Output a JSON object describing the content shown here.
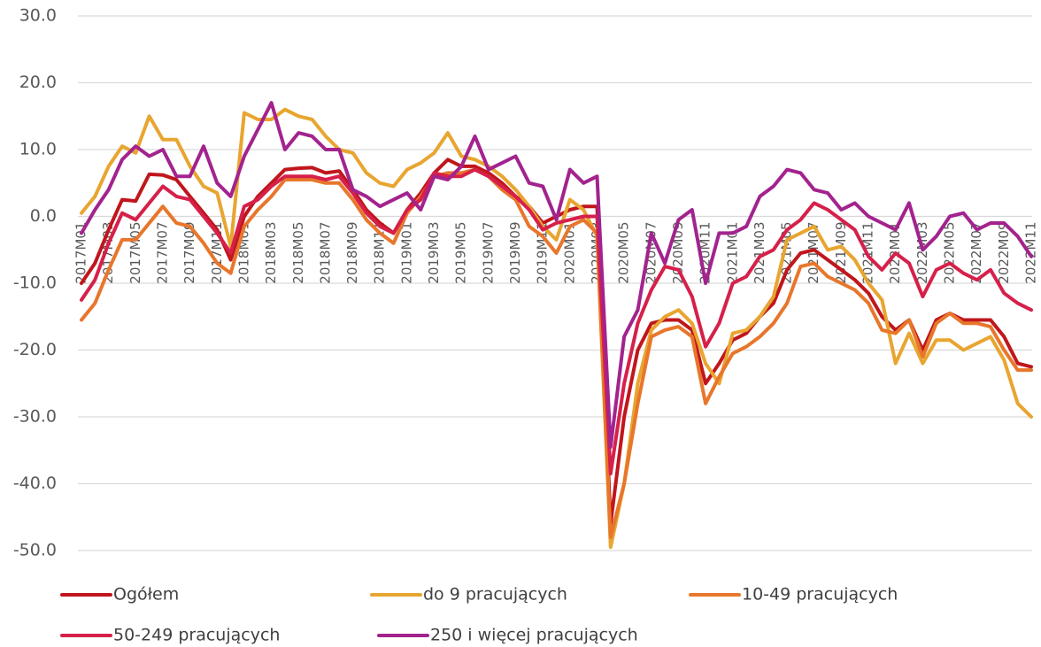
{
  "chart_data": {
    "type": "line",
    "categories": [
      "2017M01",
      null,
      "2017M03",
      null,
      "2017M05",
      null,
      "2017M07",
      null,
      "2017M09",
      null,
      "2017M11",
      null,
      "2018M01",
      null,
      "2018M03",
      null,
      "2018M05",
      null,
      "2018M07",
      null,
      "2018M09",
      null,
      "2018M11",
      null,
      "2019M01",
      null,
      "2019M03",
      null,
      "2019M05",
      null,
      "2019M07",
      null,
      "2019M09",
      null,
      "2019M11",
      null,
      "2020M01",
      null,
      "2020M03",
      null,
      "2020M05",
      null,
      "2020M07",
      null,
      "2020M09",
      null,
      "2020M11",
      null,
      "2021M01",
      null,
      "2021M03",
      null,
      "2021M05",
      null,
      "2021M07",
      null,
      "2021M09",
      null,
      "2021M11",
      null,
      "2022M01",
      null,
      "2022M03",
      null,
      "2022M05",
      null,
      "2022M07",
      null,
      "2022M09",
      null,
      "2022M11"
    ],
    "series": [
      {
        "name": "Ogółem",
        "color": "#c0161c",
        "values": [
          -10,
          -7,
          -2,
          2.5,
          2.3,
          6.3,
          6.2,
          5.5,
          3,
          0.5,
          -2,
          -6.5,
          0,
          3,
          5,
          7,
          7.2,
          7.3,
          6.5,
          6.8,
          4,
          1,
          -1,
          -2.5,
          1,
          3.5,
          6.5,
          8.5,
          7.5,
          7.5,
          6.5,
          5,
          3,
          1.5,
          -1,
          0,
          1,
          1.5,
          1.5,
          -46,
          -30,
          -20,
          -16,
          -15.5,
          -15.5,
          -17,
          -25,
          -22,
          -18.5,
          -17.5,
          -15,
          -13,
          -8,
          -5.5,
          -5,
          -6.5,
          -8,
          -9.5,
          -11.5,
          -15,
          -17,
          -15.5,
          -20,
          -15.5,
          -14.5,
          -15.5,
          -15.5,
          -15.5,
          -18,
          -22,
          -22.5
        ]
      },
      {
        "name": "do 9 pracujących",
        "color": "#e8a530",
        "values": [
          0.5,
          3,
          7.5,
          10.5,
          9.5,
          15,
          11.5,
          11.5,
          7.5,
          4.5,
          3.5,
          -4.5,
          15.5,
          14.5,
          14.5,
          16,
          15,
          14.5,
          12,
          10,
          9.5,
          6.5,
          5,
          4.5,
          7,
          8,
          9.5,
          12.5,
          9,
          8.5,
          7.5,
          6,
          4,
          1.5,
          -1.5,
          -3.5,
          2.5,
          1,
          -3,
          -49.5,
          -40,
          -25,
          -17,
          -15,
          -14,
          -16,
          -22,
          -25,
          -17.5,
          -17,
          -15,
          -12,
          -3.5,
          -2.5,
          -1.5,
          -5,
          -4.5,
          -6.5,
          -10,
          -12.5,
          -22,
          -17.5,
          -22,
          -18.5,
          -18.5,
          -20,
          -19,
          -18,
          -21.5,
          -28,
          -30
        ]
      },
      {
        "name": "10-49 pracujących",
        "color": "#e8762b",
        "values": [
          -15.5,
          -13,
          -8,
          -3.5,
          -3.5,
          -1,
          1.5,
          -1,
          -1.5,
          -4,
          -7,
          -8.5,
          -1.5,
          1,
          3,
          5.5,
          5.5,
          5.5,
          5,
          5,
          2.5,
          -0.5,
          -2.5,
          -4,
          0.5,
          3,
          6,
          6.5,
          6.5,
          7,
          6,
          4,
          2.5,
          -1.5,
          -3,
          -5.5,
          -1.5,
          -0.5,
          -2.5,
          -48,
          -40,
          -28,
          -18,
          -17,
          -16.5,
          -18,
          -28,
          -24,
          -20.5,
          -19.5,
          -18,
          -16,
          -13,
          -7.5,
          -7,
          -9,
          -10,
          -11,
          -13,
          -17,
          -17.5,
          -15.5,
          -21,
          -16,
          -14.5,
          -16,
          -16,
          -16.5,
          -20,
          -23,
          -23
        ]
      },
      {
        "name": "50-249 pracujących",
        "color": "#d6204a",
        "values": [
          -12.5,
          -9.5,
          -4,
          0.5,
          -0.5,
          2,
          4.5,
          3,
          2.5,
          0,
          -2.5,
          -5.5,
          1.5,
          2.5,
          4.5,
          6,
          6,
          6,
          5.5,
          6,
          3.5,
          0.5,
          -1.5,
          -2.5,
          1,
          2.5,
          6.5,
          6,
          6,
          7,
          6,
          4.5,
          3,
          1,
          -2,
          -1,
          -0.5,
          0,
          0,
          -38.5,
          -25,
          -16,
          -11,
          -7.5,
          -8,
          -12,
          -19.5,
          -16,
          -10,
          -9,
          -6,
          -5,
          -2,
          -0.5,
          2,
          1,
          -0.5,
          -2,
          -6,
          -8,
          -5.5,
          -7,
          -12,
          -8,
          -7,
          -8.5,
          -9.5,
          -8,
          -11.5,
          -13,
          -14
        ]
      },
      {
        "name": "250 i więcej pracujących",
        "color": "#a3238e",
        "values": [
          -2.5,
          1,
          4,
          8.5,
          10.5,
          9,
          10,
          6,
          6,
          10.5,
          5,
          3,
          9,
          13,
          17,
          10,
          12.5,
          12,
          10,
          10,
          4,
          3,
          1.5,
          2.5,
          3.5,
          1,
          6,
          5.5,
          7.5,
          12,
          7,
          8,
          9,
          5,
          4.5,
          -0.5,
          7,
          5,
          6,
          -34.5,
          -18,
          -14,
          -2.5,
          -7,
          -0.5,
          1,
          -10,
          -2.5,
          -2.5,
          -1.5,
          3,
          4.5,
          7,
          6.5,
          4,
          3.5,
          1,
          2,
          0,
          -1,
          -2,
          2,
          -5,
          -3,
          0,
          0.5,
          -2,
          -1,
          -1,
          -3,
          -6
        ]
      }
    ],
    "ylim": [
      -50,
      30
    ],
    "yticks": [
      {
        "value": -50,
        "label": "-50.0"
      },
      {
        "value": -40,
        "label": "-40.0"
      },
      {
        "value": -30,
        "label": "-30.0"
      },
      {
        "value": -20,
        "label": "-20.0"
      },
      {
        "value": -10,
        "label": "-10.0"
      },
      {
        "value": 0,
        "label": "0.0"
      },
      {
        "value": 10,
        "label": "10.0"
      },
      {
        "value": 20,
        "label": "20.0"
      },
      {
        "value": 30,
        "label": "30.0"
      }
    ],
    "grid": true,
    "legend": "bottom"
  }
}
